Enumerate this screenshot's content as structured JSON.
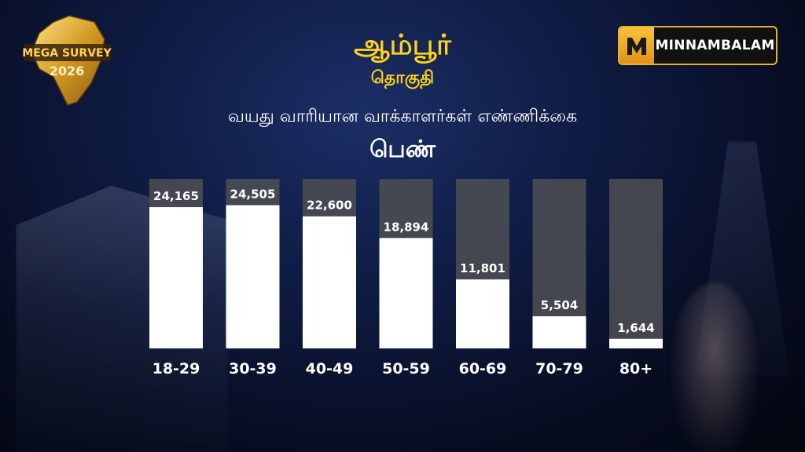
{
  "header": {
    "title": "ஆம்பூர்",
    "subtitle": "தொகுதி",
    "caption": "வயது வாரியான வாக்காளர்கள் எண்ணிக்கை",
    "category": "பெண்"
  },
  "badge": {
    "line1": "MEGA SURVEY",
    "line2": "2026"
  },
  "brand": {
    "name": "MINNAMBALAM",
    "mark": "M"
  },
  "colors": {
    "title": "#ffd21a",
    "bar_fill": "#ffffff",
    "bar_track": "#4a4c52",
    "brand_border": "#e6b22e"
  },
  "chart_data": {
    "type": "bar",
    "title": "",
    "xlabel": "",
    "ylabel": "",
    "categories": [
      "18-29",
      "30-39",
      "40-49",
      "50-59",
      "60-69",
      "70-79",
      "80+"
    ],
    "values": [
      24165,
      24505,
      22600,
      18894,
      11801,
      5504,
      1644
    ],
    "value_labels": [
      "24,165",
      "24,505",
      "22,600",
      "18,894",
      "11,801",
      "5,504",
      "1,644"
    ],
    "ylim": [
      0,
      29000
    ],
    "grid": false,
    "legend": "none"
  }
}
